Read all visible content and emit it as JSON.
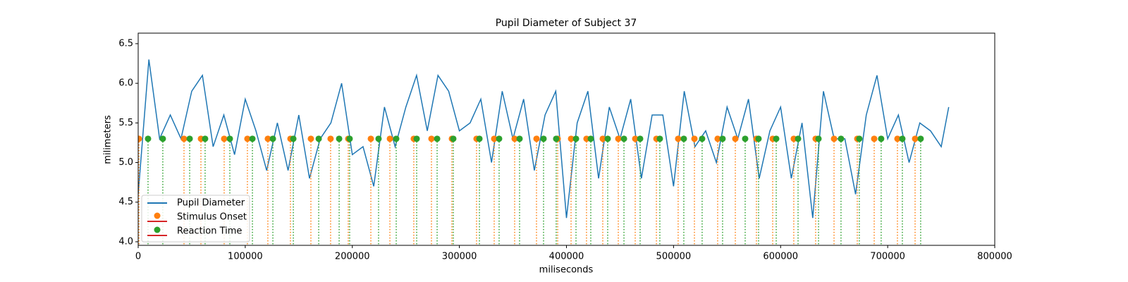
{
  "chart_data": {
    "type": "line",
    "title": "Pupil Diameter of Subject 37",
    "x_label": "miliseconds",
    "y_label": "milimeters",
    "xlim": [
      0,
      800000
    ],
    "ylim": [
      3.955,
      6.633
    ],
    "xticks": [
      0,
      100000,
      200000,
      300000,
      400000,
      500000,
      600000,
      700000,
      800000
    ],
    "yticks": [
      {
        "value": 4,
        "label": "4.0"
      },
      4.5,
      {
        "value": 5,
        "label": "5.0"
      },
      5.5,
      {
        "value": 6,
        "label": "6.0"
      },
      6.5
    ],
    "legend": "lower left",
    "baseline_color": "#d62728",
    "series": [
      {
        "name": "Pupil Diameter",
        "type": "line",
        "color": "#1f77b4",
        "x": [
          0,
          10000,
          20000,
          30000,
          40000,
          50000,
          60000,
          70000,
          80000,
          90000,
          100000,
          110000,
          120000,
          130000,
          140000,
          150000,
          160000,
          170000,
          180000,
          190000,
          200000,
          210000,
          220000,
          230000,
          240000,
          250000,
          260000,
          270000,
          280000,
          290000,
          300000,
          310000,
          320000,
          330000,
          340000,
          350000,
          360000,
          370000,
          380000,
          390000,
          400000,
          410000,
          420000,
          430000,
          440000,
          450000,
          460000,
          470000,
          480000,
          490000,
          500000,
          510000,
          520000,
          530000,
          540000,
          550000,
          560000,
          570000,
          580000,
          590000,
          600000,
          610000,
          620000,
          630000,
          640000,
          650000,
          660000,
          670000,
          680000,
          690000,
          700000,
          710000,
          720000,
          730000,
          740000,
          750000,
          757000
        ],
        "values": [
          4.6,
          6.3,
          5.3,
          5.6,
          5.3,
          5.9,
          6.1,
          5.2,
          5.6,
          5.1,
          5.8,
          5.4,
          4.9,
          5.5,
          4.9,
          5.6,
          4.8,
          5.3,
          5.5,
          6.0,
          5.1,
          5.2,
          4.7,
          5.7,
          5.2,
          5.7,
          6.1,
          5.4,
          6.1,
          5.9,
          5.4,
          5.5,
          5.8,
          5.0,
          5.9,
          5.3,
          5.8,
          4.9,
          5.6,
          5.9,
          4.3,
          5.5,
          5.9,
          4.8,
          5.7,
          5.3,
          5.8,
          4.8,
          5.6,
          5.6,
          4.7,
          5.9,
          5.2,
          5.4,
          5.0,
          5.7,
          5.3,
          5.8,
          4.8,
          5.4,
          5.7,
          4.8,
          5.5,
          4.3,
          5.9,
          5.3,
          5.3,
          4.6,
          5.6,
          6.1,
          5.3,
          5.6,
          5.0,
          5.5,
          5.4,
          5.2,
          5.7
        ]
      },
      {
        "name": "Stimulus Onset",
        "type": "stem",
        "color": "#ff7f0e",
        "x": [
          700,
          42800,
          58600,
          80300,
          102000,
          121100,
          142200,
          161300,
          179700,
          196200,
          217300,
          235100,
          257400,
          273900,
          293000,
          316000,
          332500,
          351600,
          372000,
          391800,
          404300,
          418700,
          433900,
          448400,
          464200,
          484000,
          504300,
          519500,
          541200,
          557700,
          577400,
          592600,
          612300,
          632700,
          649900,
          671600,
          687400,
          709100,
          725600
        ],
        "values": [
          5.3,
          5.3,
          5.3,
          5.3,
          5.3,
          5.3,
          5.3,
          5.3,
          5.3,
          5.3,
          5.3,
          5.3,
          5.3,
          5.3,
          5.3,
          5.3,
          5.3,
          5.3,
          5.3,
          5.3,
          5.3,
          5.3,
          5.3,
          5.3,
          5.3,
          5.3,
          5.3,
          5.3,
          5.3,
          5.3,
          5.3,
          5.3,
          5.3,
          5.3,
          5.3,
          5.3,
          5.3,
          5.3,
          5.3
        ]
      },
      {
        "name": "Reaction Time",
        "type": "stem",
        "color": "#2ca02c",
        "x": [
          9200,
          23000,
          48100,
          62500,
          85600,
          106700,
          125800,
          144900,
          168600,
          187700,
          197500,
          224500,
          241000,
          260100,
          279200,
          294300,
          318700,
          337100,
          356200,
          378600,
          390400,
          408900,
          422700,
          438500,
          453700,
          468800,
          487200,
          509600,
          526700,
          545800,
          566900,
          579400,
          595900,
          616300,
          635400,
          656400,
          673500,
          693900,
          713700,
          730800
        ],
        "values": [
          5.3,
          5.3,
          5.3,
          5.3,
          5.3,
          5.3,
          5.3,
          5.3,
          5.3,
          5.3,
          5.3,
          5.3,
          5.3,
          5.3,
          5.3,
          5.3,
          5.3,
          5.3,
          5.3,
          5.3,
          5.3,
          5.3,
          5.3,
          5.3,
          5.3,
          5.3,
          5.3,
          5.3,
          5.3,
          5.3,
          5.3,
          5.3,
          5.3,
          5.3,
          5.3,
          5.3,
          5.3,
          5.3,
          5.3,
          5.3
        ]
      }
    ]
  }
}
